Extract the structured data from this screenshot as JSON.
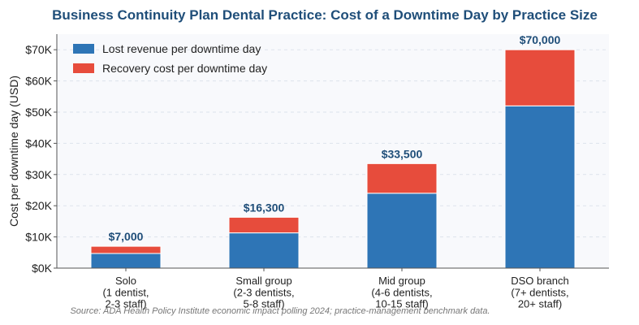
{
  "chart_data": {
    "type": "stacked_bar",
    "title": "Business Continuity Plan Dental Practice: Cost of a Downtime Day by Practice Size",
    "y_label": "Cost per downtime day (USD)",
    "categories": [
      "Solo\n(1 dentist,\n2-3 staff)",
      "Small group\n(2-3 dentists,\n5-8 staff)",
      "Mid group\n(4-6 dentists,\n10-15 staff)",
      "DSO branch\n(7+ dentists,\n20+ staff)"
    ],
    "series": [
      {
        "name": "Lost revenue per downtime day",
        "color": "#2e75b6",
        "values": [
          4700,
          11300,
          24000,
          52000
        ]
      },
      {
        "name": "Recovery cost per downtime day",
        "color": "#e74c3c",
        "values": [
          2300,
          5000,
          9500,
          18000
        ]
      }
    ],
    "totals": [
      7000,
      16300,
      33500,
      70000
    ],
    "total_labels": [
      "$7,000",
      "$16,300",
      "$33,500",
      "$70,000"
    ],
    "ylim": [
      0,
      75000
    ],
    "yticks": [
      {
        "value": 0,
        "label": "$0K"
      },
      {
        "value": 10000,
        "label": "$10K"
      },
      {
        "value": 20000,
        "label": "$20K"
      },
      {
        "value": 30000,
        "label": "$30K"
      },
      {
        "value": 40000,
        "label": "$40K"
      },
      {
        "value": 50000,
        "label": "$50K"
      },
      {
        "value": 60000,
        "label": "$60K"
      },
      {
        "value": 70000,
        "label": "$70K"
      }
    ],
    "grid": true,
    "legend": "upper-left",
    "source": "Source: ADA Health Policy Institute economic impact polling 2024; practice-management benchmark data."
  }
}
